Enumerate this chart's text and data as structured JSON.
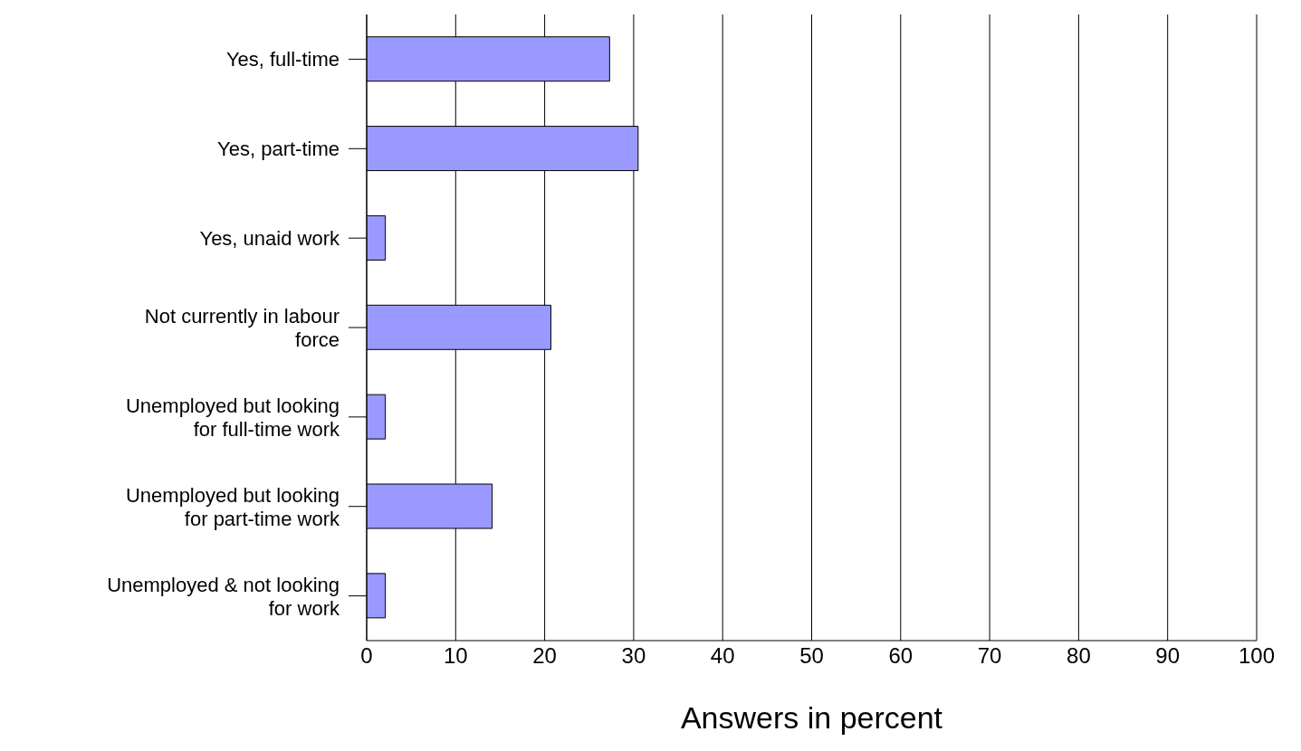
{
  "chart_data": {
    "type": "bar",
    "orientation": "horizontal",
    "xlabel": "Answers in percent",
    "categories": [
      "Yes, full-time",
      "Yes, part-time",
      "Yes, unaid work",
      "Not currently in labour force",
      "Unemployed but looking for full-time work",
      "Unemployed but looking for part-time work",
      "Unemployed & not looking for work"
    ],
    "values": [
      27.3,
      30.5,
      2.1,
      20.7,
      2.1,
      14.1,
      2.1
    ],
    "color": "#9999ff",
    "xlim": [
      0,
      100
    ],
    "xticks": [
      0,
      10,
      20,
      30,
      40,
      50,
      60,
      70,
      80,
      90,
      100
    ],
    "grid": "x"
  }
}
